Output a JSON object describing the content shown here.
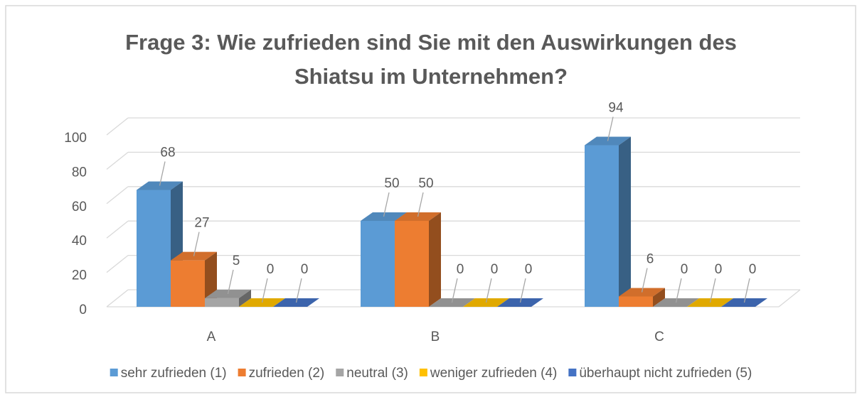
{
  "chart_data": {
    "type": "bar3d",
    "title": [
      "Frage 3: Wie zufrieden sind Sie mit den Auswirkungen des",
      "Shiatsu im Unternehmen?"
    ],
    "categories": [
      "A",
      "B",
      "C"
    ],
    "series": [
      {
        "name": "sehr zufrieden (1)",
        "color": "#5b9bd5",
        "values": [
          68,
          50,
          94
        ]
      },
      {
        "name": "zufrieden (2)",
        "color": "#ed7d31",
        "values": [
          27,
          50,
          6
        ]
      },
      {
        "name": "neutral (3)",
        "color": "#a5a5a5",
        "values": [
          5,
          0,
          0
        ]
      },
      {
        "name": "weniger zufrieden (4)",
        "color": "#ffc000",
        "values": [
          0,
          0,
          0
        ]
      },
      {
        "name": "überhaupt nicht zufrieden (5)",
        "color": "#4472c4",
        "values": [
          0,
          0,
          0
        ]
      }
    ],
    "ylim": [
      0,
      100
    ],
    "yticks": [
      0,
      20,
      40,
      60,
      80,
      100
    ],
    "grid": true,
    "legend": "bottom"
  }
}
